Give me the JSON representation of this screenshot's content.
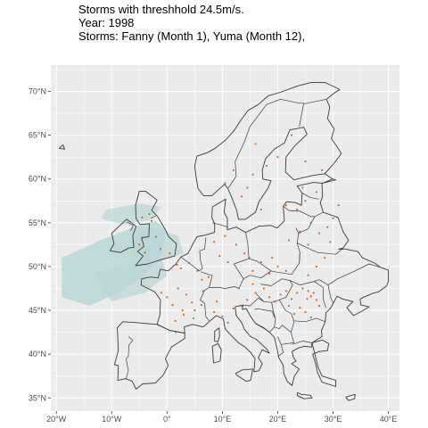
{
  "title": {
    "line1": "Storms with threshhold 24.5m/s.",
    "line2": "Year: 1998",
    "line3": "Storms: Fanny (Month 1), Yuma (Month 12),"
  },
  "y_axis": {
    "ticks": [
      {
        "value": 35,
        "label": "35°N"
      },
      {
        "value": 40,
        "label": "40°N"
      },
      {
        "value": 45,
        "label": "45°N"
      },
      {
        "value": 50,
        "label": "50°N"
      },
      {
        "value": 55,
        "label": "55°N"
      },
      {
        "value": 60,
        "label": "60°N"
      },
      {
        "value": 65,
        "label": "65°N"
      },
      {
        "value": 70,
        "label": "70°N"
      }
    ]
  },
  "x_axis": {
    "ticks": [
      {
        "value": -20,
        "label": "20°W"
      },
      {
        "value": -10,
        "label": "10°W"
      },
      {
        "value": 0,
        "label": "0°"
      },
      {
        "value": 10,
        "label": "10°E"
      },
      {
        "value": 20,
        "label": "20°E"
      },
      {
        "value": 30,
        "label": "30°E"
      },
      {
        "value": 40,
        "label": "40°E"
      }
    ]
  },
  "map_extent": {
    "lon": [
      -21,
      42
    ],
    "lat": [
      33.5,
      73
    ]
  },
  "colors": {
    "panel": "#ebebeb",
    "grid": "#ffffff",
    "storm_footprint": "#b9d6d6",
    "storm_points": "#d35400",
    "borders": "#3a3a3a"
  },
  "storm_points": [
    [
      -3.2,
      56.0
    ],
    [
      -4.5,
      55.6
    ],
    [
      -2.8,
      55.2
    ],
    [
      -5.0,
      52.5
    ],
    [
      -4.0,
      51.6
    ],
    [
      -2.0,
      53.4
    ],
    [
      0.5,
      51.5
    ],
    [
      -1.2,
      52.0
    ],
    [
      1.8,
      50.2
    ],
    [
      2.5,
      49.8
    ],
    [
      4.0,
      50.4
    ],
    [
      5.5,
      49.5
    ],
    [
      6.3,
      48.5
    ],
    [
      7.5,
      48.8
    ],
    [
      6.5,
      47.2
    ],
    [
      2.0,
      47.5
    ],
    [
      3.5,
      46.8
    ],
    [
      4.5,
      45.9
    ],
    [
      1.0,
      45.6
    ],
    [
      0.0,
      46.5
    ],
    [
      -1.0,
      47.0
    ],
    [
      2.8,
      45.0
    ],
    [
      5.0,
      45.0
    ],
    [
      3.0,
      44.5
    ],
    [
      4.8,
      44.1
    ],
    [
      6.2,
      45.6
    ],
    [
      1.5,
      43.8
    ],
    [
      8.5,
      44.8
    ],
    [
      10.0,
      44.3
    ],
    [
      11.0,
      43.6
    ],
    [
      9.0,
      46.0
    ],
    [
      12.0,
      45.2
    ],
    [
      13.5,
      45.5
    ],
    [
      14.5,
      46.2
    ],
    [
      13.0,
      47.5
    ],
    [
      15.5,
      48.0
    ],
    [
      16.0,
      47.0
    ],
    [
      17.5,
      47.5
    ],
    [
      18.5,
      46.5
    ],
    [
      19.5,
      46.0
    ],
    [
      20.5,
      46.8
    ],
    [
      21.5,
      47.2
    ],
    [
      22.5,
      46.3
    ],
    [
      23.5,
      47.0
    ],
    [
      24.5,
      47.5
    ],
    [
      25.5,
      47.2
    ],
    [
      26.0,
      46.6
    ],
    [
      25.3,
      46.3
    ],
    [
      26.5,
      47.0
    ],
    [
      27.0,
      46.2
    ],
    [
      24.0,
      45.3
    ],
    [
      23.0,
      44.6
    ],
    [
      22.0,
      45.5
    ],
    [
      25.0,
      44.8
    ],
    [
      26.0,
      44.2
    ],
    [
      27.5,
      45.5
    ],
    [
      15.5,
      49.5
    ],
    [
      17.0,
      50.5
    ],
    [
      18.5,
      49.2
    ],
    [
      20.0,
      50.0
    ],
    [
      21.5,
      49.5
    ],
    [
      19.0,
      51.0
    ],
    [
      14.0,
      51.5
    ],
    [
      12.5,
      52.5
    ],
    [
      11.0,
      50.5
    ],
    [
      9.5,
      51.2
    ],
    [
      8.5,
      52.8
    ],
    [
      10.5,
      53.5
    ],
    [
      22.0,
      53.0
    ],
    [
      24.0,
      54.0
    ],
    [
      26.0,
      55.0
    ],
    [
      27.5,
      53.8
    ],
    [
      29.0,
      54.5
    ],
    [
      25.5,
      52.5
    ],
    [
      23.5,
      56.5
    ],
    [
      25.0,
      57.5
    ],
    [
      27.0,
      58.5
    ],
    [
      21.5,
      57.0
    ],
    [
      24.5,
      59.0
    ],
    [
      15.5,
      60.5
    ],
    [
      18.0,
      61.5
    ],
    [
      14.5,
      59.0
    ],
    [
      17.0,
      56.5
    ],
    [
      13.5,
      58.0
    ],
    [
      20.0,
      62.5
    ],
    [
      16.0,
      64.0
    ],
    [
      22.5,
      65.0
    ],
    [
      12.0,
      61.0
    ],
    [
      10.5,
      59.5
    ],
    [
      25.0,
      62.0
    ],
    [
      28.0,
      61.0
    ],
    [
      30.0,
      55.5
    ],
    [
      31.0,
      57.0
    ],
    [
      29.5,
      52.8
    ],
    [
      28.5,
      51.0
    ],
    [
      27.0,
      50.0
    ],
    [
      25.5,
      49.0
    ]
  ]
}
